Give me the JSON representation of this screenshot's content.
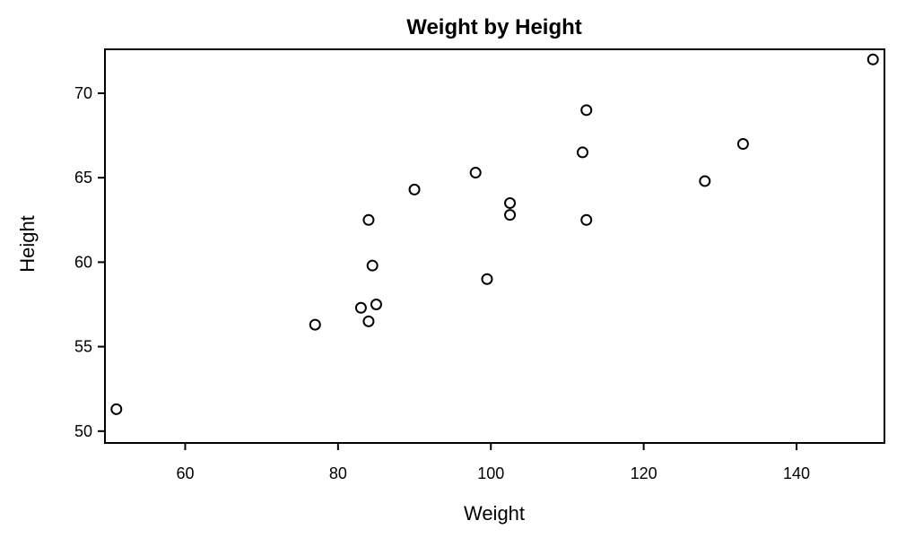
{
  "chart_data": {
    "type": "scatter",
    "title": "Weight by Height",
    "xlabel": "Weight",
    "ylabel": "Height",
    "xlim": [
      49.5,
      151.5
    ],
    "ylim": [
      49.3,
      72.6
    ],
    "xticks": [
      60,
      80,
      100,
      120,
      140
    ],
    "yticks": [
      50,
      55,
      60,
      65,
      70
    ],
    "marker": "open-circle",
    "grid": false,
    "legend": "none",
    "colors": {
      "marker": "#000000",
      "axis": "#000000",
      "background": "#ffffff"
    },
    "points": [
      {
        "x": 51,
        "y": 51.3
      },
      {
        "x": 77,
        "y": 56.3
      },
      {
        "x": 83,
        "y": 57.3
      },
      {
        "x": 84,
        "y": 56.5
      },
      {
        "x": 84,
        "y": 62.5
      },
      {
        "x": 84.5,
        "y": 59.8
      },
      {
        "x": 85,
        "y": 57.5
      },
      {
        "x": 90,
        "y": 64.3
      },
      {
        "x": 98,
        "y": 65.3
      },
      {
        "x": 99.5,
        "y": 59.0
      },
      {
        "x": 102.5,
        "y": 62.8
      },
      {
        "x": 102.5,
        "y": 63.5
      },
      {
        "x": 112,
        "y": 66.5
      },
      {
        "x": 112.5,
        "y": 69.0
      },
      {
        "x": 112.5,
        "y": 62.5
      },
      {
        "x": 128,
        "y": 64.8
      },
      {
        "x": 133,
        "y": 67.0
      },
      {
        "x": 150,
        "y": 72.0
      }
    ]
  }
}
